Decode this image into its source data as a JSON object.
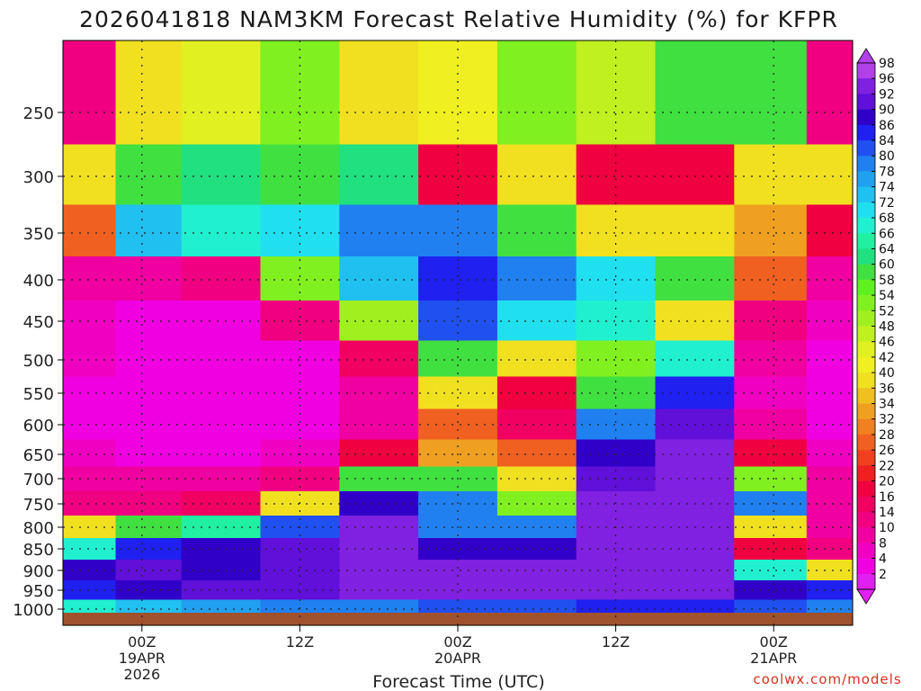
{
  "chart_data": {
    "type": "heatmap",
    "title": "2026041818 NAM3KM Forecast Relative Humidity (%) for KFPR",
    "xlabel": "Forecast Time (UTC)",
    "ylabel": "",
    "credit": "coolwx.com/models",
    "y_pressure_levels": [
      250,
      300,
      350,
      400,
      450,
      500,
      550,
      600,
      650,
      700,
      750,
      800,
      850,
      900,
      950,
      1000
    ],
    "y_ticks": [
      "250",
      "300",
      "350",
      "400",
      "450",
      "500",
      "550",
      "600",
      "650",
      "700",
      "750",
      "800",
      "850",
      "900",
      "950",
      "1000"
    ],
    "x_ticks": [
      {
        "hour": 6,
        "line1": "00Z",
        "line2": "19APR",
        "line3": "2026"
      },
      {
        "hour": 18,
        "line1": "12Z",
        "line2": "",
        "line3": ""
      },
      {
        "hour": 30,
        "line1": "00Z",
        "line2": "20APR",
        "line3": ""
      },
      {
        "hour": 42,
        "line1": "12Z",
        "line2": "",
        "line3": ""
      },
      {
        "hour": 54,
        "line1": "00Z",
        "line2": "21APR",
        "line3": ""
      }
    ],
    "x_range_hours": [
      0,
      60
    ],
    "colorbar_levels": [
      "98",
      "96",
      "92",
      "90",
      "86",
      "84",
      "80",
      "78",
      "74",
      "72",
      "68",
      "66",
      "64",
      "60",
      "58",
      "54",
      "52",
      "48",
      "46",
      "42",
      "40",
      "36",
      "34",
      "32",
      "28",
      "26",
      "22",
      "20",
      "16",
      "14",
      "10",
      "8",
      "4",
      "2"
    ],
    "colorbar_colors": [
      "#b040e8",
      "#8020e0",
      "#6010d8",
      "#3000c8",
      "#2020f0",
      "#2050f0",
      "#2080f0",
      "#20a0f0",
      "#20c0f0",
      "#20e0f0",
      "#20f0d0",
      "#20f0a0",
      "#20e080",
      "#40e040",
      "#60f020",
      "#80f020",
      "#a0f020",
      "#c0f020",
      "#e0f020",
      "#f0f020",
      "#f0e020",
      "#f0c020",
      "#f0a020",
      "#f08020",
      "#f06020",
      "#f04020",
      "#f02020",
      "#f00040",
      "#f00060",
      "#f00080",
      "#f000a0",
      "#f000c0",
      "#f000e0",
      "#e020f0"
    ],
    "rh_samples": [
      {
        "hour": 2,
        "rh": {
          "250": 14,
          "300": 40,
          "350": 30,
          "400": 10,
          "450": 8,
          "500": 8,
          "550": 6,
          "600": 6,
          "650": 8,
          "700": 10,
          "750": 14,
          "800": 40,
          "850": 70,
          "900": 90,
          "950": 86,
          "1000": 70
        }
      },
      {
        "hour": 6,
        "rh": {
          "250": 40,
          "300": 60,
          "350": 74,
          "400": 10,
          "450": 6,
          "500": 4,
          "550": 4,
          "600": 4,
          "650": 6,
          "700": 10,
          "750": 14,
          "800": 60,
          "850": 86,
          "900": 92,
          "950": 90,
          "1000": 76
        }
      },
      {
        "hour": 12,
        "rh": {
          "250": 46,
          "300": 64,
          "350": 70,
          "400": 14,
          "450": 6,
          "500": 4,
          "550": 4,
          "600": 4,
          "650": 6,
          "700": 10,
          "750": 16,
          "800": 66,
          "850": 90,
          "900": 90,
          "950": 92,
          "1000": 78
        }
      },
      {
        "hour": 18,
        "rh": {
          "250": 54,
          "300": 60,
          "350": 72,
          "400": 54,
          "450": 14,
          "500": 6,
          "550": 6,
          "600": 6,
          "650": 8,
          "700": 14,
          "750": 40,
          "800": 84,
          "850": 92,
          "900": 92,
          "950": 92,
          "1000": 80
        }
      },
      {
        "hour": 24,
        "rh": {
          "250": 40,
          "300": 64,
          "350": 80,
          "400": 74,
          "450": 52,
          "500": 16,
          "550": 10,
          "600": 10,
          "650": 20,
          "700": 60,
          "750": 90,
          "800": 96,
          "850": 96,
          "900": 96,
          "950": 96,
          "1000": 82
        }
      },
      {
        "hour": 30,
        "rh": {
          "250": 44,
          "300": 20,
          "350": 80,
          "400": 86,
          "450": 84,
          "500": 60,
          "550": 40,
          "600": 30,
          "650": 34,
          "700": 60,
          "750": 80,
          "800": 80,
          "850": 90,
          "900": 96,
          "950": 96,
          "1000": 84
        }
      },
      {
        "hour": 36,
        "rh": {
          "250": 54,
          "300": 40,
          "350": 60,
          "400": 80,
          "450": 72,
          "500": 40,
          "550": 20,
          "600": 16,
          "650": 30,
          "700": 40,
          "750": 54,
          "800": 80,
          "850": 90,
          "900": 96,
          "950": 96,
          "1000": 84
        }
      },
      {
        "hour": 42,
        "rh": {
          "250": 48,
          "300": 20,
          "350": 40,
          "400": 72,
          "450": 70,
          "500": 54,
          "550": 60,
          "600": 80,
          "650": 90,
          "700": 92,
          "750": 96,
          "800": 96,
          "850": 96,
          "900": 96,
          "950": 96,
          "1000": 86
        }
      },
      {
        "hour": 48,
        "rh": {
          "250": 60,
          "300": 20,
          "350": 40,
          "400": 60,
          "450": 40,
          "500": 70,
          "550": 86,
          "600": 92,
          "650": 96,
          "700": 96,
          "750": 96,
          "800": 96,
          "850": 96,
          "900": 96,
          "950": 96,
          "1000": 86
        }
      },
      {
        "hour": 54,
        "rh": {
          "250": 60,
          "300": 40,
          "350": 34,
          "400": 30,
          "450": 14,
          "500": 10,
          "550": 8,
          "600": 10,
          "650": 20,
          "700": 54,
          "750": 80,
          "800": 40,
          "850": 20,
          "900": 70,
          "950": 90,
          "1000": 84
        }
      },
      {
        "hour": 59,
        "rh": {
          "250": 14,
          "300": 40,
          "350": 20,
          "400": 10,
          "450": 8,
          "500": 6,
          "550": 6,
          "600": 6,
          "650": 8,
          "700": 10,
          "750": 10,
          "800": 10,
          "850": 14,
          "900": 40,
          "950": 86,
          "1000": 80
        }
      }
    ]
  }
}
